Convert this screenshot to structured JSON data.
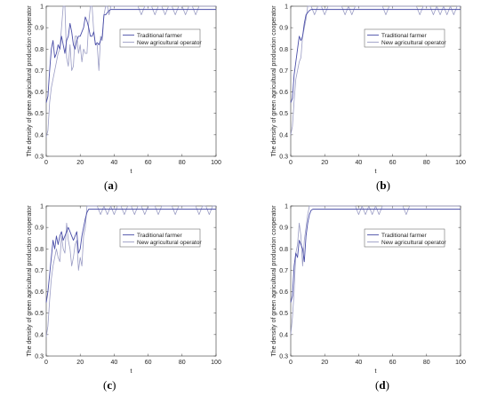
{
  "chart_data": [
    {
      "type": "line",
      "panel_label": "a",
      "xlabel": "t",
      "ylabel": "The density of green agricultural production cooperator",
      "xlim": [
        0,
        100
      ],
      "ylim": [
        0.3,
        1
      ],
      "xticks": [
        0,
        20,
        40,
        60,
        80,
        100
      ],
      "yticks": [
        0.3,
        0.4,
        0.5,
        0.6,
        0.7,
        0.8,
        0.9,
        1
      ],
      "legend_position": "top-right",
      "series": [
        {
          "name": "Traditional farmer",
          "color": "#4a4ea8",
          "x": [
            0,
            1,
            2,
            3,
            4,
            5,
            6,
            7,
            8,
            9,
            10,
            11,
            12,
            13,
            14,
            15,
            16,
            17,
            18,
            19,
            20,
            21,
            22,
            23,
            24,
            25,
            26,
            27,
            28,
            29,
            30,
            31,
            32,
            33,
            34,
            35,
            36,
            37,
            38,
            40,
            42,
            44,
            46,
            48,
            50,
            60,
            70,
            80,
            90,
            100
          ],
          "y": [
            0.55,
            0.58,
            0.7,
            0.8,
            0.84,
            0.76,
            0.78,
            0.82,
            0.8,
            0.86,
            0.82,
            0.78,
            0.84,
            0.86,
            0.92,
            0.88,
            0.82,
            0.8,
            0.84,
            0.86,
            0.86,
            0.88,
            0.9,
            0.95,
            0.93,
            0.9,
            0.86,
            0.86,
            0.88,
            0.82,
            0.83,
            0.82,
            0.84,
            0.86,
            0.96,
            0.96,
            0.97,
            0.98,
            0.985,
            0.985,
            0.985,
            0.985,
            0.985,
            0.985,
            0.985,
            0.985,
            0.985,
            0.985,
            0.985,
            0.985
          ]
        },
        {
          "name": "New agricultural operator",
          "color": "#9a9cc4",
          "x": [
            0,
            1,
            2,
            3,
            4,
            5,
            6,
            7,
            8,
            9,
            10,
            11,
            12,
            13,
            14,
            15,
            16,
            17,
            18,
            19,
            20,
            21,
            22,
            23,
            24,
            25,
            26,
            27,
            28,
            29,
            30,
            31,
            32,
            33,
            34,
            35,
            36,
            37,
            38,
            39,
            40,
            42,
            44,
            46,
            48,
            50,
            52,
            54,
            56,
            58,
            60,
            62,
            64,
            66,
            68,
            70,
            72,
            74,
            76,
            78,
            80,
            82,
            84,
            86,
            88,
            90,
            92,
            94,
            96,
            98,
            100
          ],
          "y": [
            0.39,
            0.42,
            0.55,
            0.62,
            0.66,
            0.7,
            0.74,
            0.78,
            0.8,
            0.9,
            1.0,
            1.0,
            0.76,
            0.72,
            0.82,
            0.7,
            0.72,
            0.86,
            0.86,
            0.78,
            0.82,
            0.74,
            0.8,
            0.78,
            0.78,
            0.92,
            1.0,
            1.0,
            0.88,
            0.82,
            0.82,
            0.7,
            0.86,
            0.84,
            0.96,
            1.0,
            1.0,
            0.96,
            1.0,
            1.0,
            1.0,
            1.0,
            1.0,
            1.0,
            1.0,
            1.0,
            1.0,
            1.0,
            0.96,
            1.0,
            1.0,
            1.0,
            0.96,
            1.0,
            1.0,
            0.96,
            1.0,
            1.0,
            0.96,
            1.0,
            1.0,
            0.96,
            1.0,
            1.0,
            0.96,
            1.0,
            1.0,
            1.0,
            1.0,
            1.0,
            1.0
          ]
        }
      ]
    },
    {
      "type": "line",
      "panel_label": "b",
      "xlabel": "t",
      "ylabel": "The density of green agricultural production cooperator",
      "xlim": [
        0,
        100
      ],
      "ylim": [
        0.3,
        1
      ],
      "xticks": [
        0,
        20,
        40,
        60,
        80,
        100
      ],
      "yticks": [
        0.3,
        0.4,
        0.5,
        0.6,
        0.7,
        0.8,
        0.9,
        1
      ],
      "legend_position": "top-right",
      "series": [
        {
          "name": "Traditional farmer",
          "color": "#4a4ea8",
          "x": [
            0,
            1,
            2,
            3,
            4,
            5,
            6,
            7,
            8,
            9,
            10,
            11,
            12,
            13,
            14,
            16,
            20,
            30,
            40,
            50,
            60,
            70,
            80,
            90,
            100
          ],
          "y": [
            0.55,
            0.57,
            0.68,
            0.74,
            0.8,
            0.86,
            0.84,
            0.86,
            0.92,
            0.96,
            0.97,
            0.98,
            0.985,
            0.985,
            0.985,
            0.985,
            0.985,
            0.985,
            0.985,
            0.985,
            0.985,
            0.985,
            0.985,
            0.985,
            0.985
          ]
        },
        {
          "name": "New agricultural operator",
          "color": "#9a9cc4",
          "x": [
            0,
            1,
            2,
            3,
            4,
            5,
            6,
            7,
            8,
            9,
            10,
            11,
            12,
            14,
            16,
            18,
            20,
            22,
            24,
            26,
            28,
            30,
            32,
            34,
            36,
            38,
            40,
            42,
            44,
            46,
            48,
            50,
            52,
            54,
            56,
            58,
            60,
            62,
            64,
            66,
            68,
            70,
            72,
            74,
            76,
            78,
            80,
            82,
            84,
            86,
            88,
            90,
            92,
            94,
            96,
            98,
            100
          ],
          "y": [
            0.4,
            0.44,
            0.56,
            0.66,
            0.7,
            0.74,
            0.76,
            0.86,
            0.9,
            0.94,
            1.0,
            1.0,
            1.0,
            0.96,
            1.0,
            1.0,
            0.96,
            1.0,
            1.0,
            1.0,
            1.0,
            1.0,
            0.96,
            1.0,
            0.96,
            1.0,
            1.0,
            1.0,
            1.0,
            1.0,
            1.0,
            1.0,
            1.0,
            1.0,
            0.96,
            1.0,
            1.0,
            1.0,
            1.0,
            1.0,
            1.0,
            1.0,
            1.0,
            1.0,
            0.96,
            1.0,
            1.0,
            1.0,
            0.96,
            1.0,
            0.96,
            1.0,
            0.96,
            1.0,
            0.96,
            1.0,
            1.0
          ]
        }
      ]
    },
    {
      "type": "line",
      "panel_label": "c",
      "xlabel": "t",
      "ylabel": "The density of green agricultural production cooperator",
      "xlim": [
        0,
        100
      ],
      "ylim": [
        0.3,
        1
      ],
      "xticks": [
        0,
        20,
        40,
        60,
        80,
        100
      ],
      "yticks": [
        0.3,
        0.4,
        0.5,
        0.6,
        0.7,
        0.8,
        0.9,
        1
      ],
      "legend_position": "top-right",
      "series": [
        {
          "name": "Traditional farmer",
          "color": "#4a4ea8",
          "x": [
            0,
            1,
            2,
            3,
            4,
            5,
            6,
            7,
            8,
            9,
            10,
            11,
            12,
            13,
            14,
            15,
            16,
            17,
            18,
            19,
            20,
            21,
            22,
            23,
            24,
            25,
            26,
            30,
            40,
            50,
            60,
            70,
            80,
            90,
            100
          ],
          "y": [
            0.55,
            0.6,
            0.68,
            0.76,
            0.84,
            0.8,
            0.86,
            0.82,
            0.86,
            0.88,
            0.84,
            0.86,
            0.88,
            0.9,
            0.88,
            0.86,
            0.84,
            0.86,
            0.88,
            0.78,
            0.8,
            0.86,
            0.9,
            0.94,
            0.97,
            0.985,
            0.985,
            0.985,
            0.985,
            0.985,
            0.985,
            0.985,
            0.985,
            0.985,
            0.985
          ]
        },
        {
          "name": "New agricultural operator",
          "color": "#9a9cc4",
          "x": [
            0,
            1,
            2,
            3,
            4,
            5,
            6,
            7,
            8,
            9,
            10,
            11,
            12,
            13,
            14,
            15,
            16,
            17,
            18,
            19,
            20,
            21,
            22,
            23,
            24,
            25,
            26,
            28,
            30,
            32,
            34,
            36,
            38,
            40,
            42,
            44,
            46,
            48,
            50,
            52,
            54,
            56,
            58,
            60,
            62,
            64,
            66,
            68,
            70,
            72,
            74,
            76,
            78,
            80,
            82,
            84,
            86,
            88,
            90,
            92,
            94,
            96,
            98,
            100
          ],
          "y": [
            0.39,
            0.44,
            0.56,
            0.66,
            0.72,
            0.76,
            0.8,
            0.76,
            0.74,
            0.86,
            0.8,
            0.78,
            0.92,
            0.84,
            0.8,
            0.72,
            0.76,
            0.82,
            0.84,
            0.7,
            0.76,
            0.72,
            0.86,
            0.9,
            1.0,
            1.0,
            1.0,
            1.0,
            1.0,
            0.96,
            1.0,
            0.96,
            1.0,
            0.96,
            1.0,
            1.0,
            0.96,
            1.0,
            1.0,
            0.96,
            1.0,
            1.0,
            0.96,
            1.0,
            1.0,
            1.0,
            0.96,
            1.0,
            1.0,
            1.0,
            1.0,
            0.96,
            1.0,
            1.0,
            1.0,
            1.0,
            1.0,
            1.0,
            0.96,
            1.0,
            1.0,
            0.96,
            1.0,
            1.0
          ]
        }
      ]
    },
    {
      "type": "line",
      "panel_label": "d",
      "xlabel": "t",
      "ylabel": "The density of green agricultural production cooperator",
      "xlim": [
        0,
        100
      ],
      "ylim": [
        0.3,
        1
      ],
      "xticks": [
        0,
        20,
        40,
        60,
        80,
        100
      ],
      "yticks": [
        0.3,
        0.4,
        0.5,
        0.6,
        0.7,
        0.8,
        0.9,
        1
      ],
      "legend_position": "top-right",
      "series": [
        {
          "name": "Traditional farmer",
          "color": "#4a4ea8",
          "x": [
            0,
            1,
            2,
            3,
            4,
            5,
            6,
            7,
            8,
            9,
            10,
            11,
            12,
            13,
            14,
            16,
            20,
            30,
            40,
            50,
            60,
            70,
            80,
            90,
            100
          ],
          "y": [
            0.55,
            0.58,
            0.72,
            0.78,
            0.76,
            0.84,
            0.82,
            0.8,
            0.74,
            0.86,
            0.92,
            0.96,
            0.98,
            0.985,
            0.985,
            0.985,
            0.985,
            0.985,
            0.985,
            0.985,
            0.985,
            0.985,
            0.985,
            0.985,
            0.985
          ]
        },
        {
          "name": "New agricultural operator",
          "color": "#9a9cc4",
          "x": [
            0,
            1,
            2,
            3,
            4,
            5,
            6,
            7,
            8,
            9,
            10,
            11,
            12,
            13,
            14,
            16,
            18,
            20,
            22,
            24,
            26,
            28,
            30,
            32,
            34,
            36,
            38,
            40,
            42,
            44,
            46,
            48,
            50,
            52,
            54,
            56,
            58,
            60,
            62,
            64,
            66,
            68,
            70,
            72,
            74,
            76,
            78,
            80,
            82,
            84,
            86,
            88,
            90,
            92,
            94,
            96,
            98,
            100
          ],
          "y": [
            0.4,
            0.48,
            0.6,
            0.78,
            0.82,
            0.92,
            0.86,
            0.72,
            0.84,
            0.9,
            0.96,
            1.0,
            1.0,
            1.0,
            1.0,
            1.0,
            1.0,
            1.0,
            1.0,
            1.0,
            1.0,
            1.0,
            1.0,
            1.0,
            1.0,
            1.0,
            1.0,
            0.96,
            1.0,
            0.96,
            1.0,
            0.96,
            1.0,
            0.96,
            1.0,
            1.0,
            1.0,
            1.0,
            1.0,
            1.0,
            1.0,
            0.96,
            1.0,
            1.0,
            1.0,
            1.0,
            1.0,
            1.0,
            1.0,
            1.0,
            1.0,
            1.0,
            1.0,
            1.0,
            1.0,
            1.0,
            1.0,
            1.0
          ]
        }
      ]
    }
  ],
  "captions": [
    "(a)",
    "(b)",
    "(c)",
    "(d)"
  ]
}
